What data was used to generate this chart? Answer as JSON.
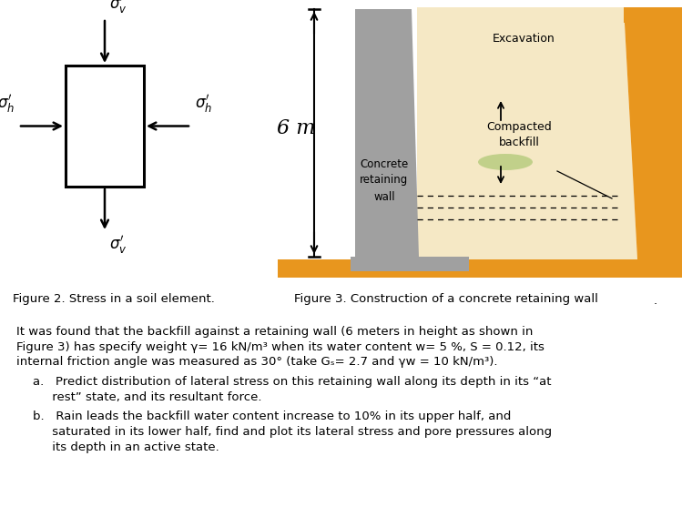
{
  "fig_width": 7.49,
  "fig_height": 5.68,
  "bg_color": "#ffffff",
  "orange_color": "#e8961e",
  "wall_color": "#a0a0a0",
  "exc_fill_color": "#f5e8c5",
  "comp_fill_color": "#b8cc80",
  "figure2_caption": "Figure 2. Stress in a soil element.",
  "figure3_caption": "Figure 3. Construction of a concrete retaining wall",
  "excavation_label": "Excavation",
  "backfill_label": "Compacted\nbackfill",
  "wall_label": "Concrete\nretaining\nwall",
  "dim_label": "6 m",
  "body_text_line1": "It was found that the backfill against a retaining wall (6 meters in height as shown in",
  "body_text_line2": "Figure 3) has specify weight γ= 16 kN/m³ when its water content w= 5 %, S = 0.12, its",
  "body_text_line3": "internal friction angle was measured as 30° (take Gₛ= 2.7 and γw = 10 kN/m³).",
  "bullet_a_1": "a.   Predict distribution of lateral stress on this retaining wall along its depth in its “at",
  "bullet_a_2": "     rest” state, and its resultant force.",
  "bullet_b_1": "b.   Rain leads the backfill water content increase to 10% in its upper half, and",
  "bullet_b_2": "     saturated in its lower half, find and plot its lateral stress and pore pressures along",
  "bullet_b_3": "     its depth in an active state."
}
